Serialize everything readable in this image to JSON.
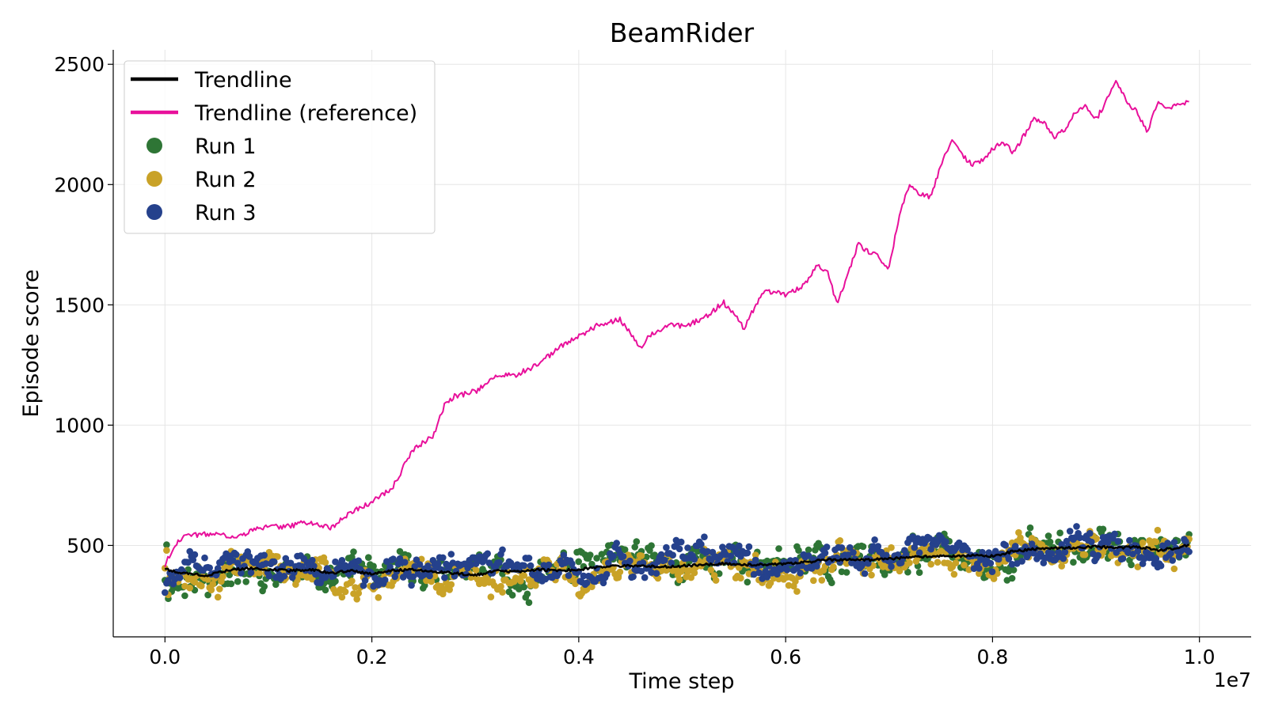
{
  "chart_data": {
    "type": "line",
    "title": "BeamRider",
    "xlabel": "Time step",
    "ylabel": "Episode score",
    "x_offset_label": "1e7",
    "xlim": [
      -0.05,
      1.05
    ],
    "ylim": [
      120,
      2560
    ],
    "x_ticks": [
      0.0,
      0.2,
      0.4,
      0.6,
      0.8,
      1.0
    ],
    "x_tick_labels": [
      "0.0",
      "0.2",
      "0.4",
      "0.6",
      "0.8",
      "1.0"
    ],
    "y_ticks": [
      500,
      1000,
      1500,
      2000,
      2500
    ],
    "y_tick_labels": [
      "500",
      "1000",
      "1500",
      "2000",
      "2500"
    ],
    "grid": true,
    "legend_position": "top-left",
    "legend": [
      {
        "label": "Trendline",
        "kind": "line",
        "color": "#000000"
      },
      {
        "label": "Trendline (reference)",
        "kind": "line",
        "color": "#e8109b"
      },
      {
        "label": "Run 1",
        "kind": "marker",
        "color": "#2e7535"
      },
      {
        "label": "Run 2",
        "kind": "marker",
        "color": "#c9a227"
      },
      {
        "label": "Run 3",
        "kind": "marker",
        "color": "#25418c"
      }
    ],
    "series": [
      {
        "name": "Trendline (reference)",
        "kind": "line",
        "color": "#e8109b",
        "x": [
          0.0,
          0.01,
          0.02,
          0.03,
          0.05,
          0.07,
          0.09,
          0.1,
          0.12,
          0.14,
          0.16,
          0.18,
          0.2,
          0.22,
          0.24,
          0.26,
          0.27,
          0.28,
          0.3,
          0.32,
          0.34,
          0.36,
          0.38,
          0.4,
          0.42,
          0.44,
          0.46,
          0.47,
          0.49,
          0.5,
          0.52,
          0.54,
          0.55,
          0.56,
          0.57,
          0.58,
          0.6,
          0.62,
          0.63,
          0.64,
          0.65,
          0.66,
          0.67,
          0.68,
          0.69,
          0.7,
          0.71,
          0.72,
          0.73,
          0.74,
          0.75,
          0.76,
          0.77,
          0.78,
          0.79,
          0.8,
          0.81,
          0.82,
          0.83,
          0.84,
          0.85,
          0.86,
          0.87,
          0.88,
          0.89,
          0.9,
          0.91,
          0.92,
          0.93,
          0.94,
          0.95,
          0.96,
          0.97,
          0.98,
          0.99
        ],
        "y": [
          420,
          500,
          550,
          545,
          545,
          530,
          575,
          575,
          580,
          600,
          570,
          640,
          680,
          740,
          900,
          960,
          1080,
          1120,
          1140,
          1200,
          1210,
          1250,
          1320,
          1370,
          1420,
          1440,
          1320,
          1380,
          1420,
          1410,
          1440,
          1510,
          1460,
          1400,
          1490,
          1560,
          1540,
          1590,
          1670,
          1640,
          1500,
          1630,
          1750,
          1720,
          1700,
          1650,
          1880,
          2000,
          1960,
          1950,
          2080,
          2180,
          2130,
          2080,
          2100,
          2150,
          2180,
          2130,
          2200,
          2270,
          2260,
          2200,
          2230,
          2300,
          2330,
          2270,
          2350,
          2430,
          2340,
          2300,
          2220,
          2350,
          2320,
          2330,
          2350
        ]
      },
      {
        "name": "Trendline",
        "kind": "line",
        "color": "#000000",
        "x": [
          0.0,
          0.02,
          0.04,
          0.06,
          0.08,
          0.1,
          0.12,
          0.14,
          0.16,
          0.18,
          0.2,
          0.22,
          0.24,
          0.26,
          0.28,
          0.3,
          0.32,
          0.34,
          0.36,
          0.38,
          0.4,
          0.42,
          0.44,
          0.46,
          0.48,
          0.5,
          0.52,
          0.54,
          0.56,
          0.58,
          0.6,
          0.62,
          0.64,
          0.66,
          0.68,
          0.7,
          0.72,
          0.74,
          0.76,
          0.78,
          0.8,
          0.82,
          0.84,
          0.86,
          0.88,
          0.9,
          0.92,
          0.94,
          0.96,
          0.98,
          0.99
        ],
        "y": [
          400,
          385,
          375,
          395,
          405,
          400,
          395,
          400,
          385,
          395,
          380,
          395,
          400,
          390,
          385,
          375,
          395,
          390,
          400,
          395,
          400,
          410,
          415,
          415,
          410,
          415,
          420,
          425,
          420,
          420,
          425,
          430,
          440,
          440,
          440,
          445,
          450,
          455,
          455,
          460,
          455,
          475,
          485,
          490,
          490,
          495,
          490,
          495,
          480,
          490,
          505
        ]
      }
    ],
    "runs": [
      {
        "name": "Run 1",
        "color": "#2e7535",
        "trend_offset": 0,
        "spread": 78,
        "seed": 11
      },
      {
        "name": "Run 2",
        "color": "#c9a227",
        "trend_offset": -15,
        "spread": 72,
        "seed": 23
      },
      {
        "name": "Run 3",
        "color": "#25418c",
        "trend_offset": 8,
        "spread": 65,
        "seed": 37
      }
    ]
  }
}
